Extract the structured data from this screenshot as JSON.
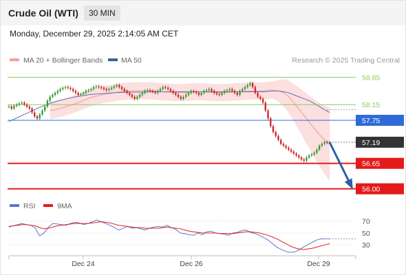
{
  "header": {
    "title": "Crude Oil (WTI)",
    "timeframe": "30 MIN",
    "timestamp": "Monday, December 29, 2025 2:14:05 AM CET"
  },
  "legend": {
    "items": [
      {
        "label": "MA 20 + Bollinger Bands",
        "color": "#f4a0a0"
      },
      {
        "label": "MA 50",
        "color": "#3a5fa0"
      }
    ],
    "credit": "Research © 2025 Trading Central"
  },
  "colors": {
    "up": "#3a9a3a",
    "down": "#cc2a2a",
    "band": "#fbd9d9",
    "ma20": "#e89a9a",
    "ma50": "#5a74b0",
    "resistance": "#8ccc5c",
    "blue_level": "#2f6bd8",
    "support": "#e41a1a",
    "current": "#333333",
    "arrow": "#2e5fa6"
  },
  "chart_data": [
    {
      "type": "candlestick",
      "title": "",
      "x_tick_labels": [
        "Dec 24",
        "Dec 26",
        "Dec 29"
      ],
      "ylim": [
        55.8,
        59.05
      ],
      "levels": [
        {
          "label": "58.85",
          "value": 58.85,
          "kind": "resistance"
        },
        {
          "label": "58.15",
          "value": 58.15,
          "kind": "resistance"
        },
        {
          "label": "57.75",
          "value": 57.75,
          "kind": "pivot"
        },
        {
          "label": "57.19",
          "value": 57.19,
          "kind": "current"
        },
        {
          "label": "56.65",
          "value": 56.65,
          "kind": "support"
        },
        {
          "label": "56.00",
          "value": 56.0,
          "kind": "support"
        }
      ],
      "close": [
        58.1,
        58.05,
        58.12,
        58.15,
        58.18,
        58.2,
        58.15,
        58.1,
        58.05,
        57.95,
        57.85,
        57.8,
        57.9,
        58.0,
        58.1,
        58.25,
        58.35,
        58.4,
        58.45,
        58.5,
        58.55,
        58.58,
        58.6,
        58.58,
        58.55,
        58.5,
        58.45,
        58.4,
        58.42,
        58.45,
        58.5,
        58.52,
        58.55,
        58.6,
        58.62,
        58.6,
        58.58,
        58.55,
        58.52,
        58.55,
        58.58,
        58.62,
        58.65,
        58.6,
        58.55,
        58.5,
        58.45,
        58.4,
        58.35,
        58.3,
        58.35,
        58.4,
        58.45,
        58.5,
        58.52,
        58.5,
        58.48,
        58.45,
        58.5,
        58.55,
        58.6,
        58.58,
        58.55,
        58.5,
        58.45,
        58.4,
        58.35,
        58.3,
        58.35,
        58.4,
        58.45,
        58.5,
        58.48,
        58.45,
        58.4,
        58.45,
        58.5,
        58.52,
        58.55,
        58.5,
        58.45,
        58.42,
        58.4,
        58.45,
        58.5,
        58.52,
        58.55,
        58.5,
        58.45,
        58.4,
        58.5,
        58.55,
        58.6,
        58.65,
        58.7,
        58.6,
        58.45,
        58.35,
        58.3,
        58.2,
        58.0,
        57.8,
        57.6,
        57.45,
        57.35,
        57.25,
        57.15,
        57.1,
        57.05,
        57.0,
        56.95,
        56.9,
        56.85,
        56.8,
        56.75,
        56.72,
        56.8,
        56.85,
        56.88,
        56.92,
        57.0,
        57.1,
        57.15,
        57.19,
        57.18,
        57.19
      ],
      "ma20": [
        58.0,
        58.02,
        58.05,
        58.08,
        58.12,
        58.16,
        58.2,
        58.25,
        58.3,
        58.34,
        58.37,
        58.4,
        58.42,
        58.44,
        58.46,
        58.48,
        58.49,
        58.5,
        58.5,
        58.5,
        58.51,
        58.5,
        58.5,
        58.49,
        58.48,
        58.47,
        58.47,
        58.46,
        58.46,
        58.46,
        58.47,
        58.48,
        58.48,
        58.48,
        58.47,
        58.46,
        58.46,
        58.46,
        58.46,
        58.47,
        58.48,
        58.48,
        58.49,
        58.5,
        58.5,
        58.5,
        58.5,
        58.52,
        58.52,
        58.5,
        58.46,
        58.38,
        58.25,
        58.1,
        57.95,
        57.8,
        57.65,
        57.5,
        57.36,
        57.24,
        57.14
      ],
      "ma50": [
        57.72,
        57.78,
        57.84,
        57.9,
        57.96,
        58.02,
        58.08,
        58.13,
        58.18,
        58.22,
        58.26,
        58.29,
        58.32,
        58.35,
        58.37,
        58.39,
        58.41,
        58.42,
        58.43,
        58.44,
        58.45,
        58.46,
        58.46,
        58.47,
        58.47,
        58.47,
        58.47,
        58.47,
        58.48,
        58.48,
        58.48,
        58.48,
        58.48,
        58.48,
        58.48,
        58.48,
        58.48,
        58.48,
        58.48,
        58.48,
        58.48,
        58.48,
        58.48,
        58.48,
        58.48,
        58.48,
        58.48,
        58.48,
        58.48,
        58.48,
        58.48,
        58.49,
        58.5,
        58.5,
        58.48,
        58.45,
        58.4,
        58.35,
        58.3,
        58.25,
        58.18,
        58.1,
        58.02,
        57.95
      ]
    },
    {
      "type": "line",
      "title": "",
      "legend": [
        "RSI",
        "9MA"
      ],
      "ylim": [
        15,
        80
      ],
      "y_ticks": [
        70,
        50,
        30
      ],
      "series": [
        {
          "name": "RSI",
          "values": [
            60,
            62,
            64,
            66,
            64,
            63,
            58,
            45,
            50,
            60,
            66,
            65,
            64,
            63,
            66,
            68,
            67,
            64,
            66,
            69,
            72,
            69,
            66,
            63,
            59,
            55,
            58,
            61,
            58,
            59,
            57,
            55,
            58,
            60,
            61,
            60,
            63,
            59,
            56,
            50,
            49,
            47,
            46,
            50,
            47,
            52,
            53,
            50,
            49,
            48,
            46,
            50,
            51,
            54,
            55,
            51,
            49,
            46,
            42,
            38,
            32,
            26,
            22,
            19,
            17,
            18,
            21,
            26,
            30,
            34,
            38,
            40,
            40,
            40
          ]
        },
        {
          "name": "9MA",
          "values": [
            61,
            62,
            63,
            64,
            64,
            63,
            62,
            59,
            57,
            58,
            60,
            62,
            63,
            64,
            65,
            66,
            66,
            66,
            66,
            67,
            68,
            69,
            68,
            67,
            65,
            63,
            62,
            61,
            60,
            59,
            59,
            58,
            58,
            58,
            58,
            59,
            60,
            59,
            58,
            57,
            55,
            53,
            52,
            51,
            50,
            50,
            50,
            50,
            49,
            49,
            49,
            49,
            50,
            51,
            52,
            52,
            51,
            50,
            48,
            46,
            43,
            40,
            36,
            32,
            28,
            25,
            23,
            22,
            23,
            24,
            26,
            28,
            30,
            32
          ]
        }
      ]
    }
  ]
}
